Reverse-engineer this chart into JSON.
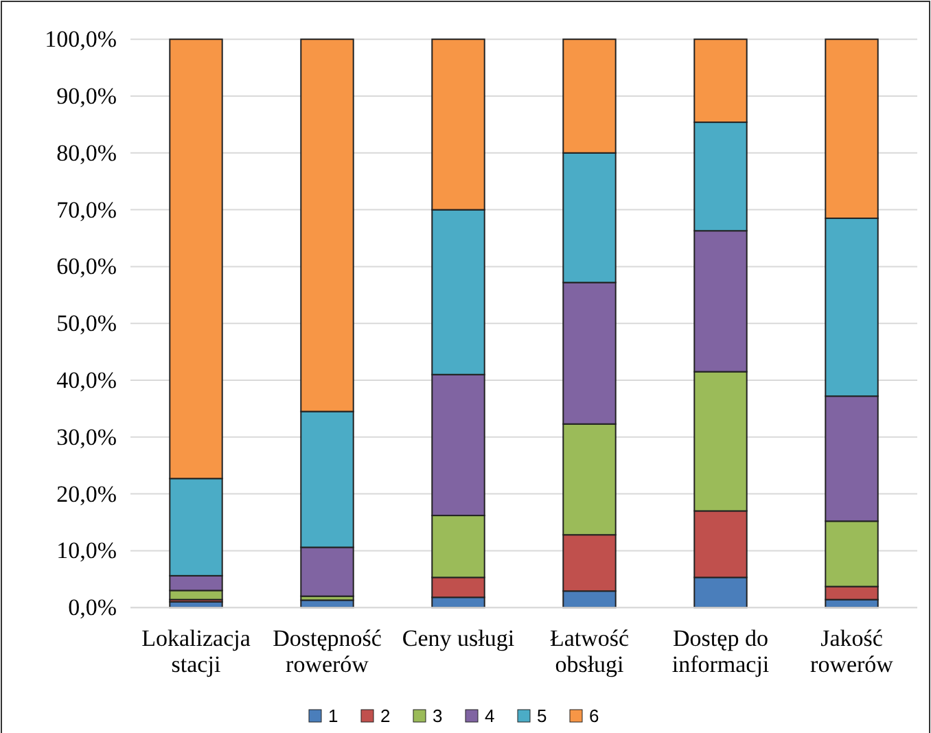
{
  "chart_data": {
    "type": "bar",
    "stacked": true,
    "categories": [
      "Lokalizacja stacji",
      "Dostępność rowerów",
      "Ceny usługi",
      "Łatwość obsługi",
      "Dostęp do informacji",
      "Jakość rowerów"
    ],
    "series": [
      {
        "name": "1",
        "color": "#4a7ebb",
        "values": [
          1.0,
          1.3,
          1.8,
          2.9,
          5.3,
          1.4
        ]
      },
      {
        "name": "2",
        "color": "#c0504d",
        "values": [
          0.4,
          0,
          3.5,
          9.9,
          11.7,
          2.3
        ]
      },
      {
        "name": "3",
        "color": "#9bbb59",
        "values": [
          1.6,
          0.7,
          10.9,
          19.5,
          24.5,
          11.5
        ]
      },
      {
        "name": "4",
        "color": "#8064a2",
        "values": [
          2.6,
          8.6,
          24.8,
          24.9,
          24.8,
          22.0
        ]
      },
      {
        "name": "5",
        "color": "#4bacc6",
        "values": [
          17.1,
          23.9,
          29.0,
          22.8,
          19.1,
          31.3
        ]
      },
      {
        "name": "6",
        "color": "#f79646",
        "values": [
          77.3,
          65.5,
          30.0,
          20.0,
          14.6,
          31.5
        ]
      }
    ],
    "ylim": [
      0,
      100
    ],
    "yticks": [
      {
        "value": 0,
        "label": "0,0%"
      },
      {
        "value": 10,
        "label": "10,0%"
      },
      {
        "value": 20,
        "label": "20,0%"
      },
      {
        "value": 30,
        "label": "30,0%"
      },
      {
        "value": 40,
        "label": "40,0%"
      },
      {
        "value": 50,
        "label": "50,0%"
      },
      {
        "value": 60,
        "label": "60,0%"
      },
      {
        "value": 70,
        "label": "70,0%"
      },
      {
        "value": 80,
        "label": "80,0%"
      },
      {
        "value": 90,
        "label": "90,0%"
      },
      {
        "value": 100,
        "label": "100,0%"
      }
    ],
    "grid": "y",
    "legend": "bottom"
  }
}
